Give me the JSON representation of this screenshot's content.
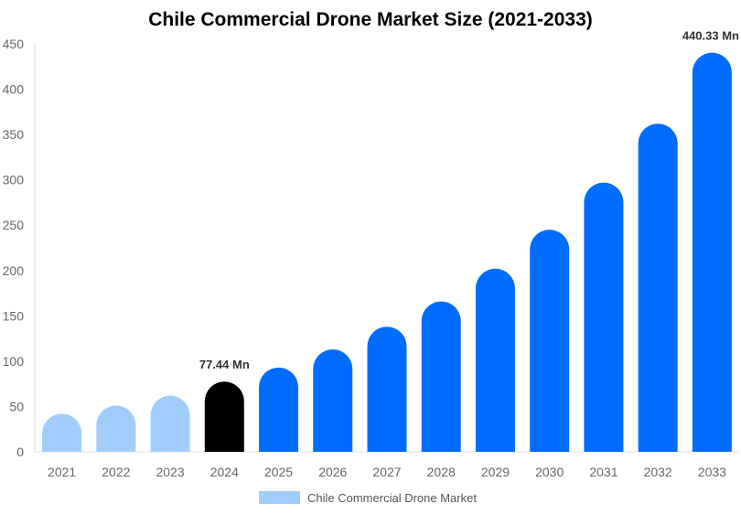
{
  "chart_data": {
    "type": "bar",
    "title": "Chile Commercial Drone Market Size (2021-2033)",
    "xlabel": "",
    "ylabel": "",
    "ylim": [
      0,
      450
    ],
    "yticks": [
      0,
      50,
      100,
      150,
      200,
      250,
      300,
      350,
      400,
      450
    ],
    "grid": false,
    "legend_position": "bottom",
    "categories": [
      "2021",
      "2022",
      "2023",
      "2024",
      "2025",
      "2026",
      "2027",
      "2028",
      "2029",
      "2030",
      "2031",
      "2032",
      "2033"
    ],
    "series": [
      {
        "name": "Chile Commercial Drone Market",
        "values": [
          42,
          51,
          62,
          77.44,
          93,
          113,
          138,
          166,
          202,
          245,
          297,
          362,
          440.33
        ]
      }
    ],
    "bar_colors": [
      "#a0cdfc",
      "#a0cdfc",
      "#a0cdfc",
      "#000000",
      "#006cff",
      "#006cff",
      "#006cff",
      "#006cff",
      "#006cff",
      "#006cff",
      "#006cff",
      "#006cff",
      "#006cff"
    ],
    "legend_color": "#a0cdfc",
    "data_labels": [
      {
        "category": "2024",
        "text": "77.44 Mn"
      },
      {
        "category": "2033",
        "text": "440.33 Mn"
      }
    ]
  }
}
